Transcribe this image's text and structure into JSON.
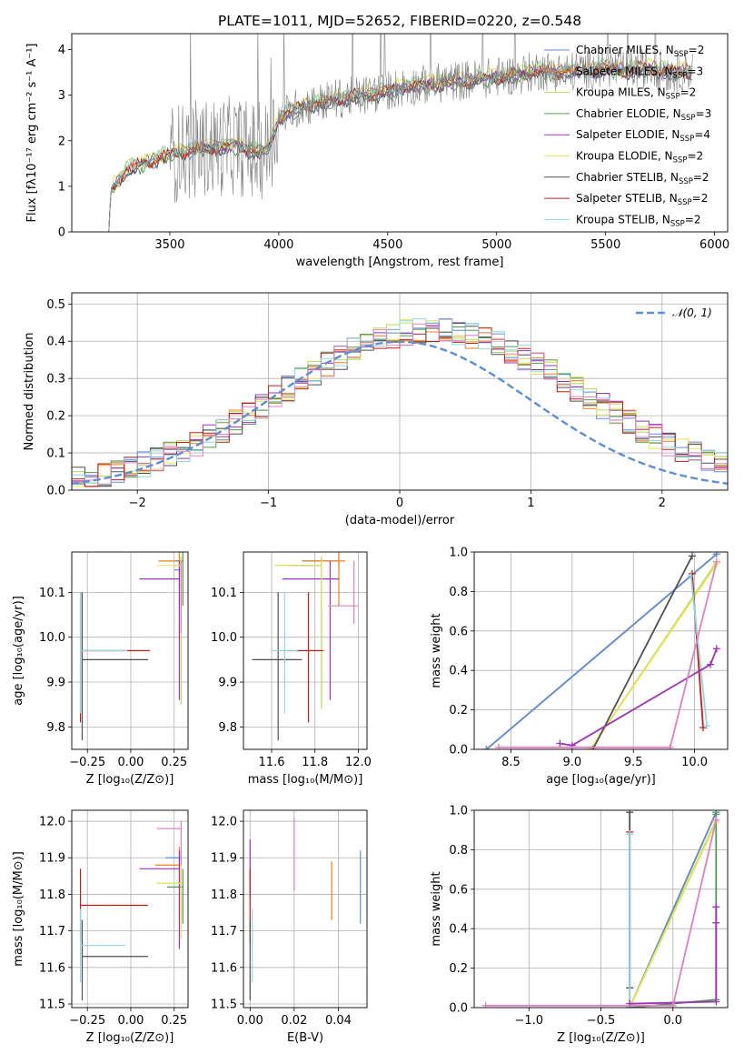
{
  "figure_title": "PLATE=1011, MJD=52652, FIBERID=0220, z=0.548",
  "colors": {
    "Chabrier MILES": "#5b8fd6",
    "Salpeter MILES": "#f07f1f",
    "Kroupa MILES": "#b8d858",
    "Chabrier ELODIE": "#4f9a4f",
    "Salpeter ELODIE": "#9a35b8",
    "Kroupa ELODIE": "#e6e65a",
    "Chabrier STELIB": "#505050",
    "Salpeter STELIB": "#c81c1c",
    "Kroupa STELIB": "#90d6e0",
    "Pink": "#e080c0",
    "Gaussian": "#5b8fd6",
    "Data": "#808080"
  },
  "chart_data": [
    {
      "id": "spectrum",
      "type": "line",
      "title": "PLATE=1011, MJD=52652, FIBERID=0220, z=0.548",
      "xlabel": "wavelength [Angstrom, rest frame]",
      "ylabel": "Flux [fλ10⁻¹⁷ erg cm⁻² s⁻¹ A⁻¹]",
      "xlim": [
        3050,
        6060
      ],
      "ylim": [
        0,
        4.35
      ],
      "xticks": [
        3500,
        4000,
        4500,
        5000,
        5500,
        6000
      ],
      "yticks": [
        0,
        1,
        2,
        3,
        4
      ],
      "grid": false,
      "legend_position": "top-right",
      "legend": [
        {
          "label": "Chabrier MILES, N",
          "sub": "SSP",
          "suffix": "=2",
          "color": "#5b8fd6"
        },
        {
          "label": "Salpeter MILES, N",
          "sub": "SSP",
          "suffix": "=3",
          "color": "#f07f1f"
        },
        {
          "label": "Kroupa MILES, N",
          "sub": "SSP",
          "suffix": "=2",
          "color": "#b8d858"
        },
        {
          "label": "Chabrier ELODIE, N",
          "sub": "SSP",
          "suffix": "=3",
          "color": "#4f9a4f"
        },
        {
          "label": "Salpeter ELODIE, N",
          "sub": "SSP",
          "suffix": "=4",
          "color": "#9a35b8"
        },
        {
          "label": "Kroupa ELODIE, N",
          "sub": "SSP",
          "suffix": "=2",
          "color": "#e6e65a"
        },
        {
          "label": "Chabrier STELIB, N",
          "sub": "SSP",
          "suffix": "=2",
          "color": "#505050"
        },
        {
          "label": "Salpeter STELIB, N",
          "sub": "SSP",
          "suffix": "=2",
          "color": "#c81c1c"
        },
        {
          "label": "Kroupa STELIB, N",
          "sub": "SSP",
          "suffix": "=2",
          "color": "#90d6e0"
        }
      ],
      "continuum": {
        "x": [
          3220,
          3230,
          3300,
          3400,
          3500,
          3600,
          3700,
          3800,
          3900,
          3950,
          4000,
          4100,
          4200,
          4300,
          4400,
          4500,
          4600,
          4700,
          4800,
          4900,
          5000,
          5100,
          5200,
          5300,
          5400,
          5500,
          5600,
          5700,
          5800,
          5900
        ],
        "y": [
          0,
          0.95,
          1.35,
          1.55,
          1.7,
          1.8,
          1.85,
          1.9,
          1.75,
          1.8,
          2.5,
          2.75,
          2.85,
          2.95,
          3.0,
          3.1,
          3.2,
          3.25,
          3.3,
          3.35,
          3.4,
          3.45,
          3.55,
          3.5,
          3.55,
          3.6,
          3.55,
          3.6,
          3.5,
          3.55
        ]
      },
      "noise_start": 3500
    },
    {
      "id": "residuals",
      "type": "line",
      "xlabel": "(data-model)/error",
      "ylabel": "Normed distribution",
      "xlim": [
        -2.5,
        2.5
      ],
      "ylim": [
        0,
        0.53
      ],
      "xticks": [
        -2,
        -1,
        0,
        1,
        2
      ],
      "yticks": [
        0.0,
        0.1,
        0.2,
        0.3,
        0.4,
        0.5
      ],
      "grid": true,
      "legend_position": "top-right",
      "legend": [
        {
          "label": "𝒩(0, 1)",
          "color": "#5b8fd6",
          "style": "dashed"
        }
      ],
      "gaussian": {
        "mean": 0,
        "sigma": 1
      }
    },
    {
      "id": "Z-age",
      "type": "scatter",
      "xlabel": "Z [log₁₀(Z/Z⊙)]",
      "ylabel": "age  [log₁₀(age/yr)]",
      "xlim": [
        -0.34,
        0.33
      ],
      "ylim": [
        9.75,
        10.19
      ],
      "xticks": [
        -0.25,
        0.0,
        0.25
      ],
      "xtick_labels": [
        "−0.25",
        "0.00",
        "0.25"
      ],
      "yticks": [
        9.8,
        9.9,
        10.0,
        10.1
      ],
      "grid": true,
      "points": [
        {
          "x": 0.29,
          "y": 10.15,
          "xerr": [
            0.04,
            0
          ],
          "yerr": [
            0.03,
            0.03
          ],
          "color": "#5b8fd6"
        },
        {
          "x": 0.28,
          "y": 10.17,
          "xerr": [
            0.12,
            0
          ],
          "yerr": [
            0.1,
            0.02
          ],
          "color": "#f07f1f"
        },
        {
          "x": 0.29,
          "y": 10.16,
          "xerr": [
            0.05,
            0
          ],
          "yerr": [
            0.31,
            0.02
          ],
          "color": "#b8d858"
        },
        {
          "x": 0.3,
          "y": 10.17,
          "xerr": [
            0.04,
            0
          ],
          "yerr": [
            0.1,
            0.02
          ],
          "color": "#4f9a4f"
        },
        {
          "x": 0.28,
          "y": 10.13,
          "xerr": [
            0.23,
            0
          ],
          "yerr": [
            0.27,
            0.04
          ],
          "color": "#9a35b8"
        },
        {
          "x": 0.29,
          "y": 10.16,
          "xerr": [
            0.14,
            0
          ],
          "yerr": [
            0.1,
            0.02
          ],
          "color": "#e6e65a"
        },
        {
          "x": -0.28,
          "y": 9.95,
          "xerr": [
            0,
            0.38
          ],
          "yerr": [
            0.18,
            0.15
          ],
          "color": "#505050"
        },
        {
          "x": -0.29,
          "y": 9.97,
          "xerr": [
            0,
            0.4
          ],
          "yerr": [
            0.16,
            0.13
          ],
          "color": "#c81c1c"
        },
        {
          "x": -0.29,
          "y": 9.97,
          "xerr": [
            0,
            0.27
          ],
          "yerr": [
            0.14,
            0.13
          ],
          "color": "#90d6e0"
        },
        {
          "x": 0.29,
          "y": 10.07,
          "xerr": [
            0,
            0
          ],
          "yerr": [
            0.06,
            0.1
          ],
          "color": "#e080c0"
        }
      ]
    },
    {
      "id": "mass-age",
      "type": "scatter",
      "xlabel": "mass [log₁₀(M/M⊙)]",
      "ylabel": "",
      "xlim": [
        11.47,
        12.04
      ],
      "ylim": [
        9.75,
        10.19
      ],
      "xticks": [
        11.6,
        11.8,
        12.0
      ],
      "yticks": [
        9.8,
        9.9,
        10.0,
        10.1
      ],
      "grid": true,
      "points": [
        {
          "x": 11.91,
          "y": 10.17,
          "xerr": [
            0.17,
            0
          ],
          "yerr": [
            0.02,
            0.02
          ],
          "color": "#5b8fd6"
        },
        {
          "x": 11.91,
          "y": 10.17,
          "xerr": [
            0.17,
            0.03
          ],
          "yerr": [
            0.1,
            0.02
          ],
          "color": "#f07f1f"
        },
        {
          "x": 11.83,
          "y": 10.16,
          "xerr": [
            0.2,
            0
          ],
          "yerr": [
            0.32,
            0.02
          ],
          "color": "#b8d858"
        },
        {
          "x": 11.83,
          "y": 10.16,
          "xerr": [
            0.15,
            0
          ],
          "yerr": [
            0.1,
            0.02
          ],
          "color": "#4f9a4f"
        },
        {
          "x": 11.87,
          "y": 10.13,
          "xerr": [
            0.22,
            0.04
          ],
          "yerr": [
            0.27,
            0.04
          ],
          "color": "#9a35b8"
        },
        {
          "x": 11.83,
          "y": 10.16,
          "xerr": [
            0.22,
            0
          ],
          "yerr": [
            0.1,
            0.02
          ],
          "color": "#e6e65a"
        },
        {
          "x": 11.63,
          "y": 9.95,
          "xerr": [
            0.12,
            0.11
          ],
          "yerr": [
            0.18,
            0.15
          ],
          "color": "#505050"
        },
        {
          "x": 11.77,
          "y": 9.97,
          "xerr": [
            0.1,
            0.07
          ],
          "yerr": [
            0.16,
            0.13
          ],
          "color": "#c81c1c"
        },
        {
          "x": 11.66,
          "y": 9.97,
          "xerr": [
            0.06,
            0.06
          ],
          "yerr": [
            0.14,
            0.13
          ],
          "color": "#90d6e0"
        },
        {
          "x": 11.98,
          "y": 10.07,
          "xerr": [
            0.12,
            0.02
          ],
          "yerr": [
            0.04,
            0.1
          ],
          "color": "#e080c0"
        }
      ]
    },
    {
      "id": "age-weight",
      "type": "line",
      "xlabel": "age  [log₁₀(age/yr)]",
      "ylabel": "mass weight",
      "xlim": [
        8.2,
        10.27
      ],
      "ylim": [
        0,
        1.0
      ],
      "xticks": [
        8.5,
        9.0,
        9.5,
        10.0
      ],
      "yticks": [
        0.0,
        0.2,
        0.4,
        0.6,
        0.8,
        1.0
      ],
      "grid": true,
      "series": [
        {
          "x": [
            8.3,
            10.18
          ],
          "y": [
            0.0,
            0.99
          ],
          "color": "#f07f1f",
          "name": "Salpeter MILES"
        },
        {
          "x": [
            8.3,
            10.18
          ],
          "y": [
            0.0,
            0.99
          ],
          "color": "#5b8fd6",
          "name": "Chabrier MILES"
        },
        {
          "x": [
            9.15,
            10.18
          ],
          "y": [
            0.0,
            0.95
          ],
          "color": "#b8d858",
          "name": "Kroupa MILES"
        },
        {
          "x": [
            9.15,
            10.18
          ],
          "y": [
            0.0,
            0.94
          ],
          "color": "#e6e65a",
          "name": "Kroupa ELODIE"
        },
        {
          "x": [
            9.17,
            9.98
          ],
          "y": [
            0.0,
            0.98
          ],
          "color": "#505050",
          "name": "Chabrier STELIB"
        },
        {
          "x": [
            9.98,
            10.07
          ],
          "y": [
            0.89,
            0.11
          ],
          "color": "#c81c1c",
          "name": "Salpeter STELIB"
        },
        {
          "x": [
            9.97,
            10.1
          ],
          "y": [
            0.88,
            0.12
          ],
          "color": "#90d6e0",
          "name": "Kroupa STELIB"
        },
        {
          "x": [
            8.9,
            9.0,
            10.13,
            10.18
          ],
          "y": [
            0.03,
            0.02,
            0.43,
            0.51
          ],
          "color": "#9a35b8",
          "name": "Salpeter ELODIE"
        },
        {
          "x": [
            8.4,
            9.8,
            10.18
          ],
          "y": [
            0.01,
            0.01,
            0.95
          ],
          "color": "#e080c0",
          "name": "Pink"
        }
      ]
    },
    {
      "id": "Z-mass",
      "type": "scatter",
      "xlabel": "Z [log₁₀(Z/Z⊙)]",
      "ylabel": "mass [log₁₀(M/M⊙)]",
      "xlim": [
        -0.34,
        0.33
      ],
      "ylim": [
        11.49,
        12.03
      ],
      "xticks": [
        -0.25,
        0.0,
        0.25
      ],
      "xtick_labels": [
        "−0.25",
        "0.00",
        "0.25"
      ],
      "yticks": [
        11.5,
        11.6,
        11.7,
        11.8,
        11.9,
        12.0
      ],
      "grid": true,
      "points": [
        {
          "x": 0.29,
          "y": 11.9,
          "xerr": [
            0.09,
            0
          ],
          "yerr": [
            0.1,
            0.02
          ],
          "color": "#5b8fd6"
        },
        {
          "x": 0.28,
          "y": 11.88,
          "xerr": [
            0.14,
            0
          ],
          "yerr": [
            0.15,
            0.05
          ],
          "color": "#f07f1f"
        },
        {
          "x": 0.29,
          "y": 11.83,
          "xerr": [
            0.14,
            0
          ],
          "yerr": [
            0.15,
            0.05
          ],
          "color": "#b8d858"
        },
        {
          "x": 0.3,
          "y": 11.82,
          "xerr": [
            0.09,
            0
          ],
          "yerr": [
            0.1,
            0.05
          ],
          "color": "#4f9a4f"
        },
        {
          "x": 0.28,
          "y": 11.87,
          "xerr": [
            0.23,
            0
          ],
          "yerr": [
            0.22,
            0.05
          ],
          "color": "#9a35b8"
        },
        {
          "x": 0.29,
          "y": 11.83,
          "xerr": [
            0.14,
            0
          ],
          "yerr": [
            0.15,
            0.05
          ],
          "color": "#e6e65a"
        },
        {
          "x": -0.28,
          "y": 11.63,
          "xerr": [
            0,
            0.38
          ],
          "yerr": [
            0.12,
            0.1
          ],
          "color": "#505050"
        },
        {
          "x": -0.29,
          "y": 11.77,
          "xerr": [
            0,
            0.39
          ],
          "yerr": [
            0.1,
            0.1
          ],
          "color": "#c81c1c"
        },
        {
          "x": -0.29,
          "y": 11.66,
          "xerr": [
            0,
            0.26
          ],
          "yerr": [
            0.1,
            0.1
          ],
          "color": "#90d6e0"
        },
        {
          "x": 0.29,
          "y": 11.98,
          "xerr": [
            0.14,
            0
          ],
          "yerr": [
            0.1,
            0.02
          ],
          "color": "#e080c0"
        }
      ]
    },
    {
      "id": "ebv-mass",
      "type": "scatter",
      "xlabel": "E(B-V)",
      "ylabel": "",
      "xlim": [
        -0.003,
        0.053
      ],
      "ylim": [
        11.49,
        12.03
      ],
      "xticks": [
        0.0,
        0.02,
        0.04
      ],
      "xtick_labels": [
        "0.00",
        "0.02",
        "0.04"
      ],
      "yticks": [
        11.5,
        11.6,
        11.7,
        11.8,
        11.9,
        12.0
      ],
      "grid": true,
      "points": [
        {
          "x": 0.05,
          "y": 11.82,
          "xerr": [
            0,
            0
          ],
          "yerr": [
            0.1,
            0.1
          ],
          "color": "#5b8fd6"
        },
        {
          "x": 0.037,
          "y": 11.81,
          "xerr": [
            0,
            0
          ],
          "yerr": [
            0.08,
            0.08
          ],
          "color": "#f07f1f"
        },
        {
          "x": 0.02,
          "y": 11.91,
          "xerr": [
            0,
            0
          ],
          "yerr": [
            0.1,
            0.1
          ],
          "color": "#e080c0"
        },
        {
          "x": 0.0,
          "y": 11.87,
          "xerr": [
            0,
            0
          ],
          "yerr": [
            0.08,
            0.08
          ],
          "color": "#9a35b8"
        },
        {
          "x": 0.0,
          "y": 11.77,
          "xerr": [
            0,
            0
          ],
          "yerr": [
            0.1,
            0.1
          ],
          "color": "#c81c1c"
        },
        {
          "x": 0.001,
          "y": 11.66,
          "xerr": [
            0,
            0
          ],
          "yerr": [
            0.1,
            0.1
          ],
          "color": "#90d6e0"
        },
        {
          "x": 0.0,
          "y": 11.63,
          "xerr": [
            0,
            0
          ],
          "yerr": [
            0.12,
            0.1
          ],
          "color": "#505050"
        }
      ]
    },
    {
      "id": "Z-weight",
      "type": "line",
      "xlabel": "Z [log₁₀(Z/Z⊙)]",
      "ylabel": "mass weight",
      "xlim": [
        -1.38,
        0.38
      ],
      "ylim": [
        0,
        1.0
      ],
      "xticks": [
        -1.0,
        -0.5,
        0.0
      ],
      "xtick_labels": [
        "−1.0",
        "−0.5",
        "0.0"
      ],
      "yticks": [
        0.0,
        0.2,
        0.4,
        0.6,
        0.8,
        1.0
      ],
      "grid": true,
      "series": [
        {
          "x": [
            -0.3,
            0.3
          ],
          "y": [
            0.0,
            0.99
          ],
          "color": "#f07f1f",
          "name": "Salpeter MILES"
        },
        {
          "x": [
            -0.3,
            0.3
          ],
          "y": [
            0.0,
            0.99
          ],
          "color": "#5b8fd6",
          "name": "Chabrier MILES"
        },
        {
          "x": [
            -0.3,
            0.3
          ],
          "y": [
            0.0,
            0.95
          ],
          "color": "#b8d858",
          "name": "Kroupa MILES"
        },
        {
          "x": [
            -0.3,
            0.3
          ],
          "y": [
            0.0,
            0.94
          ],
          "color": "#e6e65a",
          "name": "Kroupa ELODIE"
        },
        {
          "x": [
            -0.3,
            -0.3
          ],
          "y": [
            0.1,
            0.99
          ],
          "color": "#505050",
          "name": "Chabrier STELIB"
        },
        {
          "x": [
            -0.3,
            0.3,
            0.3
          ],
          "y": [
            0.0,
            0.04,
            0.98
          ],
          "color": "#4f9a4f",
          "name": "Chabrier ELODIE"
        },
        {
          "x": [
            -0.3,
            -0.3
          ],
          "y": [
            0.0,
            0.89
          ],
          "color": "#c81c1c",
          "name": "Salpeter STELIB"
        },
        {
          "x": [
            -0.3,
            -0.3
          ],
          "y": [
            0.0,
            0.88
          ],
          "color": "#90d6e0",
          "name": "Kroupa STELIB"
        },
        {
          "x": [
            -0.3,
            0.3,
            0.3,
            0.3
          ],
          "y": [
            0.02,
            0.03,
            0.43,
            0.51
          ],
          "color": "#9a35b8",
          "name": "Salpeter ELODIE"
        },
        {
          "x": [
            -1.3,
            0.0,
            0.3
          ],
          "y": [
            0.01,
            0.01,
            0.95
          ],
          "color": "#e080c0",
          "name": "Pink"
        }
      ]
    }
  ]
}
